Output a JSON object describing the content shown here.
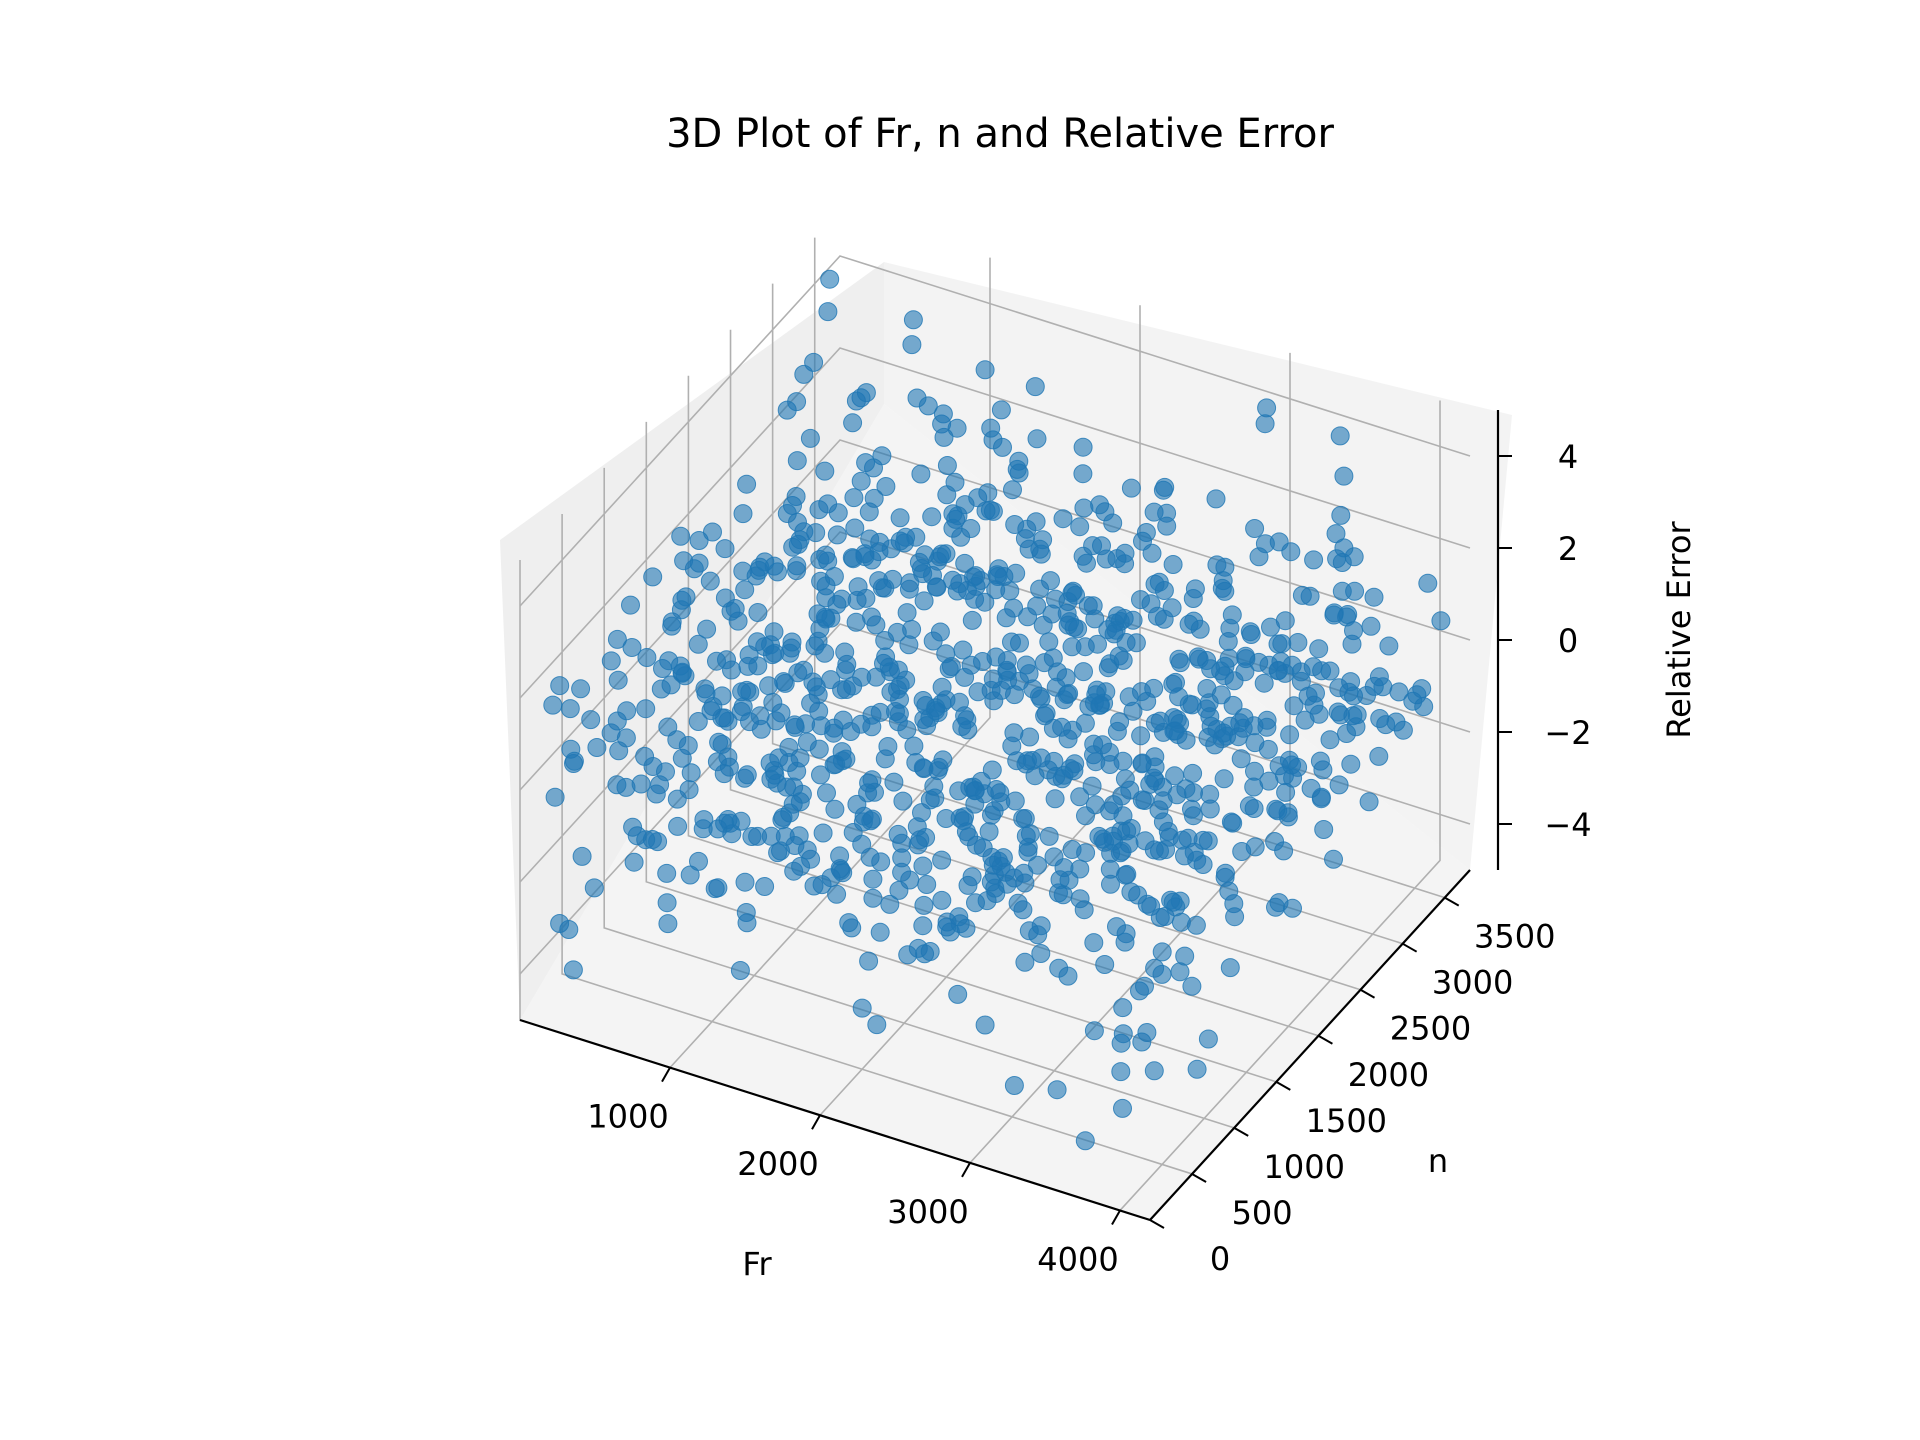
{
  "chart_data": {
    "type": "scatter",
    "projection": "3d",
    "title": "3D Plot of Fr, n and Relative Error",
    "xlabel": "Fr",
    "ylabel": "n",
    "zlabel": "Relative Error",
    "xlim": [
      0,
      4200
    ],
    "ylim": [
      0,
      3800
    ],
    "zlim": [
      -5,
      5
    ],
    "xticks": [
      1000,
      2000,
      3000,
      4000
    ],
    "xtick_labels": [
      "1000",
      "2000",
      "3000",
      "4000"
    ],
    "yticks": [
      0,
      500,
      1000,
      1500,
      2000,
      2500,
      3000,
      3500
    ],
    "ytick_labels": [
      "0",
      "500",
      "1000",
      "1500",
      "2000",
      "2500",
      "3000",
      "3500"
    ],
    "zticks": [
      -4,
      -2,
      0,
      2,
      4
    ],
    "ztick_labels": [
      "−4",
      "−2",
      "0",
      "2",
      "4"
    ],
    "grid": true,
    "marker_color": "#1f77b4",
    "marker_alpha": 0.6,
    "point_count": 1000,
    "points": [
      [
        3600,
        300,
        -4.5
      ],
      [
        3500,
        900,
        -4.3
      ],
      [
        3300,
        500,
        -4.1
      ],
      [
        100,
        3500,
        4.2
      ],
      [
        200,
        3300,
        4.0
      ],
      [
        3900,
        2800,
        4.4
      ],
      [
        300,
        100,
        -3.8
      ],
      [
        2900,
        3700,
        3.9
      ]
    ]
  }
}
